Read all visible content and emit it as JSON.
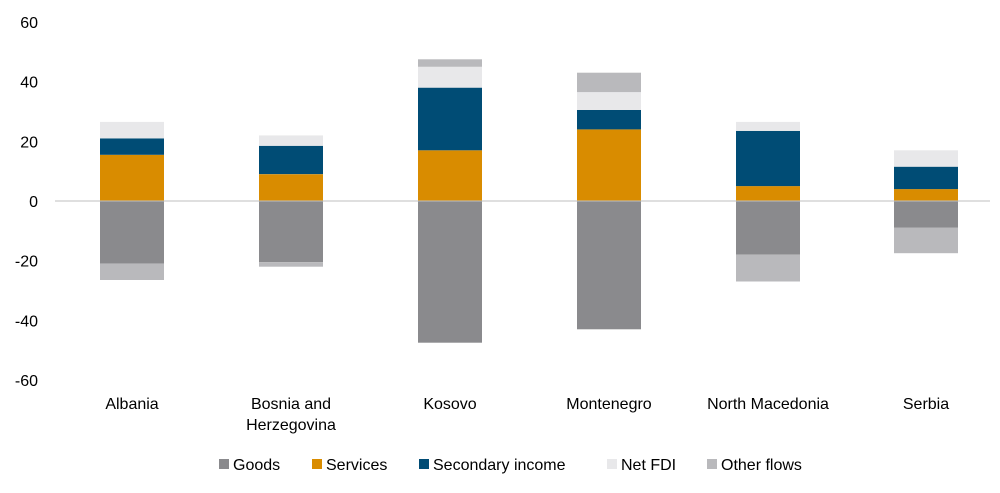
{
  "chart_data": {
    "type": "bar",
    "stacked": true,
    "categories": [
      [
        "Albania"
      ],
      [
        "Bosnia and",
        "Herzegovina"
      ],
      [
        "Kosovo"
      ],
      [
        "Montenegro"
      ],
      [
        "North Macedonia"
      ],
      [
        "Serbia"
      ]
    ],
    "ylim": [
      -60,
      60
    ],
    "yticks": [
      60,
      40,
      20,
      0,
      -20,
      -40,
      -60
    ],
    "grid": false,
    "legend_position": "bottom",
    "series": [
      {
        "name": "Goods",
        "color": "#8a8a8d",
        "values": [
          -21,
          -20.5,
          -47.5,
          -43,
          -18,
          -9
        ]
      },
      {
        "name": "Services",
        "color": "#d98c00",
        "values": [
          15.5,
          9,
          17,
          24,
          5,
          4
        ]
      },
      {
        "name": "Secondary income",
        "color": "#004c75",
        "values": [
          5.5,
          9.5,
          21,
          6.5,
          18.5,
          7.5
        ]
      },
      {
        "name": "Net FDI",
        "color": "#e8e8ea",
        "values": [
          5.5,
          3.5,
          7,
          6,
          3,
          5.5
        ]
      },
      {
        "name": "Other flows",
        "color": "#b9b9bc",
        "values": [
          -5.5,
          -1.5,
          2.5,
          6.5,
          -9,
          -8.5
        ]
      }
    ]
  }
}
